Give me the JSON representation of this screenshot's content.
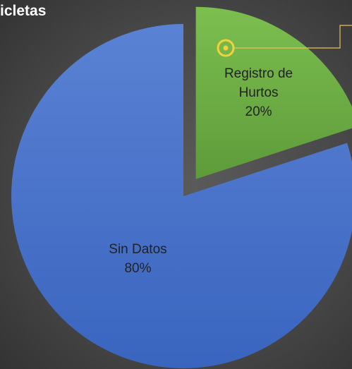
{
  "chart_data": {
    "type": "pie",
    "title": "icletas",
    "categories": [
      "Registro de Hurtos",
      "Sin Datos"
    ],
    "values": [
      20,
      80
    ],
    "value_labels": [
      "20%",
      "80%"
    ],
    "colors": [
      "#70ad47",
      "#4472c4"
    ],
    "explode": [
      true,
      false
    ]
  }
}
